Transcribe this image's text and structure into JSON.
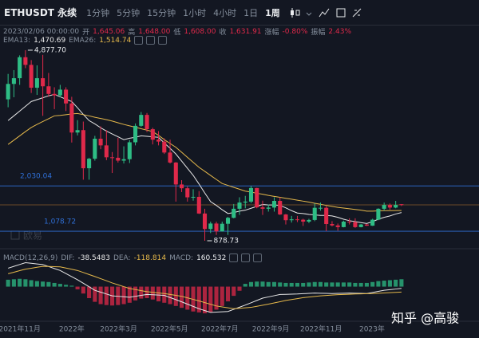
{
  "toolbar": {
    "symbol": "ETHUSDT 永续",
    "intervals": [
      "1分钟",
      "5分钟",
      "15分钟",
      "1小时",
      "4小时",
      "1日",
      "1周"
    ],
    "active_interval": 6
  },
  "info": {
    "time": "2023/02/06 00:00:00",
    "fields": [
      {
        "label": "开",
        "value": "1,645.06"
      },
      {
        "label": "高",
        "value": "1,648.00"
      },
      {
        "label": "低",
        "value": "1,608.00"
      },
      {
        "label": "收",
        "value": "1,631.91"
      },
      {
        "label": "涨幅",
        "value": "-0.80%"
      },
      {
        "label": "振幅",
        "value": "2.43%"
      }
    ]
  },
  "watermark": {
    "brand": "欧易",
    "author": "知乎 @高骏"
  },
  "chart_data": {
    "type": "candlestick",
    "xlim": [
      -1.4,
      81.4
    ],
    "xticks": [
      {
        "value": 2,
        "label": "2021年11月"
      },
      {
        "value": 11,
        "label": "2022年"
      },
      {
        "value": 19.1,
        "label": "2022年3月"
      },
      {
        "value": 27.9,
        "label": "2022年5月"
      },
      {
        "value": 36.6,
        "label": "2022年7月"
      },
      {
        "value": 45.4,
        "label": "2022年9月"
      },
      {
        "value": 54.1,
        "label": "2022年11月"
      },
      {
        "value": 62.9,
        "label": "2023年"
      }
    ],
    "ylim": [
      800,
      5200
    ],
    "up_color": "#2ebd85",
    "down_color": "#e0294a",
    "open": [
      3847,
      4170,
      4290,
      4730,
      4570,
      4090,
      4290,
      4120,
      3960,
      3930,
      4050,
      3760,
      3150,
      3200,
      2400,
      2600,
      3020,
      2880,
      2630,
      2620,
      2560,
      2590,
      2945,
      3290,
      3520,
      3220,
      3000,
      2960,
      2730,
      2520,
      2060,
      1980,
      1790,
      1800,
      1450,
      1125,
      1240,
      1075,
      1235,
      1360,
      1550,
      1680,
      1700,
      1985,
      1580,
      1550,
      1575,
      1715,
      1430,
      1310,
      1328,
      1320,
      1280,
      1315,
      1570,
      1570,
      1230,
      1200,
      1165,
      1280,
      1270,
      1165,
      1220,
      1195,
      1320,
      1550,
      1630,
      1575,
      1645.06
    ],
    "high": [
      4380,
      4460,
      4770,
      4877.7,
      4670,
      4560,
      4780,
      4400,
      4100,
      4150,
      4100,
      3900,
      3410,
      3380,
      2620,
      3080,
      3280,
      3200,
      2740,
      3040,
      2860,
      2990,
      3340,
      3580,
      3560,
      3250,
      3180,
      3030,
      3000,
      2530,
      2150,
      2020,
      1960,
      1920,
      1550,
      1280,
      1280,
      1280,
      1380,
      1650,
      1790,
      1820,
      2030.04,
      1990,
      1720,
      1640,
      1790,
      1790,
      1440,
      1400,
      1400,
      1340,
      1340,
      1660,
      1680,
      1610,
      1290,
      1240,
      1300,
      1350,
      1350,
      1230,
      1230,
      1340,
      1560,
      1680,
      1660,
      1715,
      1648
    ],
    "low": [
      3680,
      3890,
      4150,
      4500,
      3980,
      3940,
      3500,
      3900,
      3640,
      3890,
      3600,
      2940,
      3090,
      2160,
      2160,
      2560,
      2800,
      2570,
      2300,
      2520,
      2500,
      2510,
      2880,
      3270,
      3160,
      2900,
      2880,
      2700,
      2500,
      1700,
      1900,
      1700,
      1720,
      1440,
      878.73,
      1040,
      1000,
      1070,
      1000,
      1350,
      1420,
      1560,
      1670,
      1560,
      1420,
      1490,
      1490,
      1420,
      1220,
      1260,
      1270,
      1190,
      1250,
      1290,
      1510,
      1078.72,
      1180,
      1090,
      1160,
      1220,
      1150,
      1160,
      1190,
      1190,
      1310,
      1510,
      1530,
      1560,
      1608
    ],
    "close": [
      4170,
      4290,
      4730,
      4570,
      4090,
      4290,
      4120,
      3960,
      3930,
      4050,
      3760,
      3150,
      3200,
      2400,
      2600,
      3020,
      2880,
      2630,
      2620,
      2560,
      2590,
      2945,
      3290,
      3520,
      3220,
      3000,
      2960,
      2730,
      2520,
      2060,
      1980,
      1790,
      1800,
      1450,
      1125,
      1240,
      1075,
      1235,
      1360,
      1550,
      1680,
      1700,
      1985,
      1580,
      1550,
      1575,
      1715,
      1430,
      1310,
      1328,
      1320,
      1280,
      1315,
      1570,
      1570,
      1230,
      1200,
      1165,
      1280,
      1270,
      1165,
      1220,
      1195,
      1320,
      1550,
      1630,
      1575,
      1630,
      1631.91
    ],
    "last_price_color": "#8a5a2b",
    "ema": [
      {
        "name": "EMA13:",
        "value_label": "1,470.69",
        "color": "#e8e8e8",
        "values": [
          3400,
          3500,
          3600,
          3700,
          3800,
          3840,
          3880,
          3920,
          3950,
          3900,
          3850,
          3800,
          3670,
          3530,
          3400,
          3330,
          3250,
          3180,
          3120,
          3060,
          3000,
          3030,
          3050,
          3080,
          3070,
          3060,
          3050,
          2930,
          2820,
          2700,
          2550,
          2400,
          2250,
          2070,
          1880,
          1700,
          1620,
          1530,
          1450,
          1470,
          1500,
          1520,
          1560,
          1600,
          1640,
          1630,
          1630,
          1620,
          1570,
          1510,
          1460,
          1450,
          1430,
          1420,
          1410,
          1410,
          1400,
          1370,
          1330,
          1300,
          1280,
          1260,
          1240,
          1280,
          1330,
          1370,
          1400,
          1440,
          1470.69
        ]
      },
      {
        "name": "EMA26:",
        "value_label": "1,514.74",
        "color": "#e6b94b",
        "values": [
          2900,
          2990,
          3080,
          3170,
          3255,
          3320,
          3380,
          3440,
          3500,
          3510,
          3525,
          3540,
          3550,
          3525,
          3500,
          3470,
          3445,
          3420,
          3390,
          3355,
          3320,
          3290,
          3260,
          3230,
          3200,
          3170,
          3090,
          3000,
          2920,
          2840,
          2735,
          2630,
          2525,
          2420,
          2335,
          2250,
          2165,
          2080,
          2040,
          2000,
          1960,
          1920,
          1900,
          1875,
          1855,
          1830,
          1810,
          1790,
          1770,
          1750,
          1730,
          1710,
          1690,
          1665,
          1645,
          1620,
          1600,
          1580,
          1565,
          1550,
          1535,
          1520,
          1500,
          1500,
          1505,
          1510,
          1510,
          1512,
          1514.74
        ]
      }
    ],
    "price_marks": [
      {
        "value": 4877.7,
        "label": "4,877.70"
      },
      {
        "value": 878.73,
        "label": "878.73"
      }
    ],
    "hlines": [
      {
        "value": 2030.04,
        "label": "2,030.04",
        "color": "#2f6fd6"
      },
      {
        "value": 1078.72,
        "label": "1,078.72",
        "color": "#2f6fd6"
      }
    ],
    "macd": {
      "title": "MACD(12,26,9)",
      "ylim": [
        -700,
        650
      ],
      "hist": {
        "name": "MACD:",
        "value_label": "160.532",
        "values": [
          150,
          160,
          170,
          160,
          140,
          120,
          110,
          100,
          80,
          60,
          40,
          20,
          -60,
          -150,
          -250,
          -330,
          -380,
          -400,
          -410,
          -400,
          -380,
          -350,
          -300,
          -260,
          -250,
          -280,
          -320,
          -350,
          -380,
          -420,
          -460,
          -500,
          -540,
          -560,
          -580,
          -560,
          -500,
          -420,
          -320,
          -200,
          -90,
          60,
          100,
          110,
          110,
          100,
          100,
          90,
          80,
          80,
          80,
          80,
          90,
          100,
          100,
          90,
          90,
          90,
          90,
          90,
          80,
          80,
          80,
          100,
          120,
          130,
          140,
          150,
          160.532
        ]
      },
      "lines": [
        {
          "name": "DIF:",
          "value_label": "-38.5483",
          "color": "#e8e8e8",
          "values": [
            400,
            440,
            480,
            520,
            507,
            493,
            480,
            437,
            393,
            350,
            283,
            217,
            150,
            73,
            -3,
            -80,
            -120,
            -160,
            -200,
            -210,
            -220,
            -230,
            -210,
            -190,
            -170,
            -177,
            -183,
            -190,
            -237,
            -283,
            -330,
            -380,
            -430,
            -480,
            -520,
            -560,
            -553,
            -547,
            -540,
            -493,
            -447,
            -400,
            -350,
            -300,
            -250,
            -223,
            -197,
            -170,
            -167,
            -163,
            -160,
            -153,
            -147,
            -140,
            -143,
            -147,
            -150,
            -147,
            -143,
            -140,
            -143,
            -147,
            -150,
            -127,
            -103,
            -80,
            -66,
            -52,
            -38.5483
          ]
        },
        {
          "name": "DEA:",
          "value_label": "-118.814",
          "color": "#e6b94b",
          "values": [
            280,
            313,
            347,
            380,
            400,
            420,
            440,
            437,
            433,
            430,
            403,
            377,
            350,
            307,
            263,
            220,
            173,
            127,
            80,
            40,
            0,
            -40,
            -63,
            -87,
            -110,
            -123,
            -137,
            -150,
            -170,
            -190,
            -210,
            -243,
            -277,
            -310,
            -347,
            -383,
            -420,
            -440,
            -460,
            -480,
            -470,
            -460,
            -450,
            -427,
            -403,
            -380,
            -353,
            -327,
            -300,
            -280,
            -260,
            -240,
            -227,
            -213,
            -200,
            -192,
            -183,
            -175,
            -170,
            -165,
            -160,
            -157,
            -153,
            -150,
            -143,
            -137,
            -130,
            -124,
            -118.814
          ]
        }
      ]
    }
  }
}
